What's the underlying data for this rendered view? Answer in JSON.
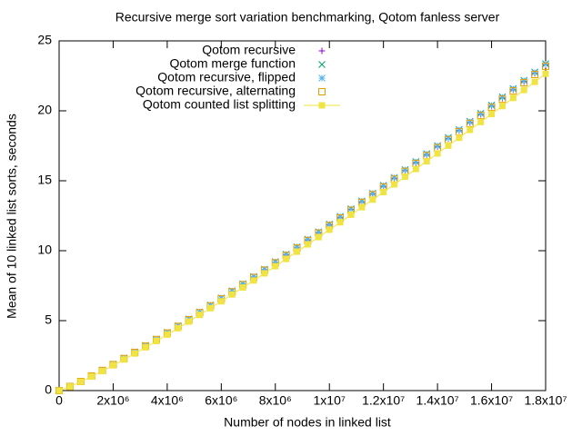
{
  "chart_data": {
    "type": "scatter",
    "title": "Recursive merge sort variation benchmarking, Qotom fanless server",
    "x_label": "Number of nodes in linked list",
    "y_label": "Mean of 10 linked list sorts, seconds",
    "x": [
      0,
      400000,
      800000,
      1200000,
      1600000,
      2000000,
      2400000,
      2800000,
      3200000,
      3600000,
      4000000,
      4400000,
      4800000,
      5200000,
      5600000,
      6000000,
      6400000,
      6800000,
      7200000,
      7600000,
      8000000,
      8400000,
      8800000,
      9200000,
      9600000,
      10000000,
      10400000,
      10800000,
      11200000,
      11600000,
      12000000,
      12400000,
      12800000,
      13200000,
      13600000,
      14000000,
      14400000,
      14800000,
      15200000,
      15600000,
      16000000,
      16400000,
      16800000,
      17200000,
      17600000,
      18000000
    ],
    "series": [
      {
        "name": "Qotom recursive",
        "color": "#9400d3",
        "marker": "plus",
        "line": false,
        "values": [
          0,
          0.29,
          0.66,
          1.04,
          1.45,
          1.87,
          2.3,
          2.75,
          3.2,
          3.67,
          4.14,
          4.61,
          5.1,
          5.59,
          6.09,
          6.59,
          7.09,
          7.61,
          8.12,
          8.65,
          9.17,
          9.7,
          10.24,
          10.77,
          11.31,
          11.85,
          12.39,
          12.95,
          13.5,
          14.06,
          14.61,
          15.17,
          15.74,
          16.3,
          16.87,
          17.44,
          18.01,
          18.59,
          19.17,
          19.75,
          20.33,
          20.91,
          21.51,
          22.09,
          22.69,
          23.28
        ]
      },
      {
        "name": "Qotom merge function",
        "color": "#009e73",
        "marker": "cross",
        "line": false,
        "values": [
          0,
          0.3,
          0.66,
          1.05,
          1.45,
          1.88,
          2.32,
          2.76,
          3.22,
          3.68,
          4.16,
          4.64,
          5.12,
          5.62,
          6.11,
          6.62,
          7.13,
          7.64,
          8.16,
          8.68,
          9.21,
          9.75,
          10.28,
          10.82,
          11.35,
          11.9,
          12.45,
          13.0,
          13.56,
          14.11,
          14.67,
          15.24,
          15.8,
          16.37,
          16.93,
          17.51,
          18.09,
          18.66,
          19.25,
          19.82,
          20.41,
          21.0,
          21.59,
          22.18,
          22.77,
          23.37
        ]
      },
      {
        "name": "Qotom recursive, flipped",
        "color": "#56b4e9",
        "marker": "star",
        "line": false,
        "values": [
          0,
          0.3,
          0.66,
          1.05,
          1.45,
          1.88,
          2.31,
          2.76,
          3.21,
          3.68,
          4.15,
          4.63,
          5.11,
          5.61,
          6.1,
          6.61,
          7.11,
          7.63,
          8.14,
          8.67,
          9.19,
          9.73,
          10.26,
          10.8,
          11.33,
          11.88,
          12.42,
          12.98,
          13.53,
          14.09,
          14.64,
          15.21,
          15.77,
          16.34,
          16.9,
          17.48,
          18.05,
          18.63,
          19.21,
          19.79,
          20.37,
          20.96,
          21.55,
          22.14,
          22.73,
          23.33
        ]
      },
      {
        "name": "Qotom recursive, alternating",
        "color": "#e69f00",
        "marker": "open-square",
        "line": false,
        "values": [
          0,
          0.29,
          0.65,
          1.04,
          1.44,
          1.86,
          2.29,
          2.73,
          3.19,
          3.65,
          4.12,
          4.59,
          5.07,
          5.57,
          6.06,
          6.56,
          7.06,
          7.57,
          8.09,
          8.61,
          9.13,
          9.66,
          10.19,
          10.73,
          11.26,
          11.8,
          12.34,
          12.89,
          13.45,
          14.0,
          14.55,
          15.11,
          15.67,
          16.24,
          16.8,
          17.37,
          17.94,
          18.51,
          19.1,
          19.67,
          20.25,
          20.83,
          21.42,
          22.01,
          22.6,
          23.19
        ]
      },
      {
        "name": "Qotom counted list splitting",
        "color": "#f0e442",
        "marker": "filled-square",
        "line": true,
        "values": [
          0,
          0.28,
          0.63,
          1.0,
          1.39,
          1.8,
          2.22,
          2.65,
          3.09,
          3.54,
          4.0,
          4.46,
          4.93,
          5.41,
          5.89,
          6.38,
          6.87,
          7.37,
          7.87,
          8.38,
          8.89,
          9.41,
          9.93,
          10.45,
          10.97,
          11.5,
          12.03,
          12.57,
          13.11,
          13.65,
          14.19,
          14.74,
          15.29,
          15.84,
          16.39,
          16.95,
          17.51,
          18.07,
          18.64,
          19.2,
          19.77,
          20.34,
          20.92,
          21.49,
          22.07,
          22.65
        ]
      }
    ],
    "xlim": [
      0,
      18000000
    ],
    "xticks": [
      0,
      {
        "value": 2000000,
        "label": "2x10⁶"
      },
      {
        "value": 4000000,
        "label": "4x10⁶"
      },
      {
        "value": 6000000,
        "label": "6x10⁶"
      },
      {
        "value": 8000000,
        "label": "8x10⁶"
      },
      {
        "value": 10000000,
        "label": "1x10⁷"
      },
      {
        "value": 12000000,
        "label": "1.2x10⁷"
      },
      {
        "value": 14000000,
        "label": "1.4x10⁷"
      },
      {
        "value": 16000000,
        "label": "1.6x10⁷"
      },
      {
        "value": 18000000,
        "label": "1.8x10⁷"
      }
    ],
    "ylim": [
      0,
      25
    ],
    "yticks": [
      0,
      5,
      10,
      15,
      20,
      25
    ],
    "grid": false,
    "legend": "top-left"
  }
}
